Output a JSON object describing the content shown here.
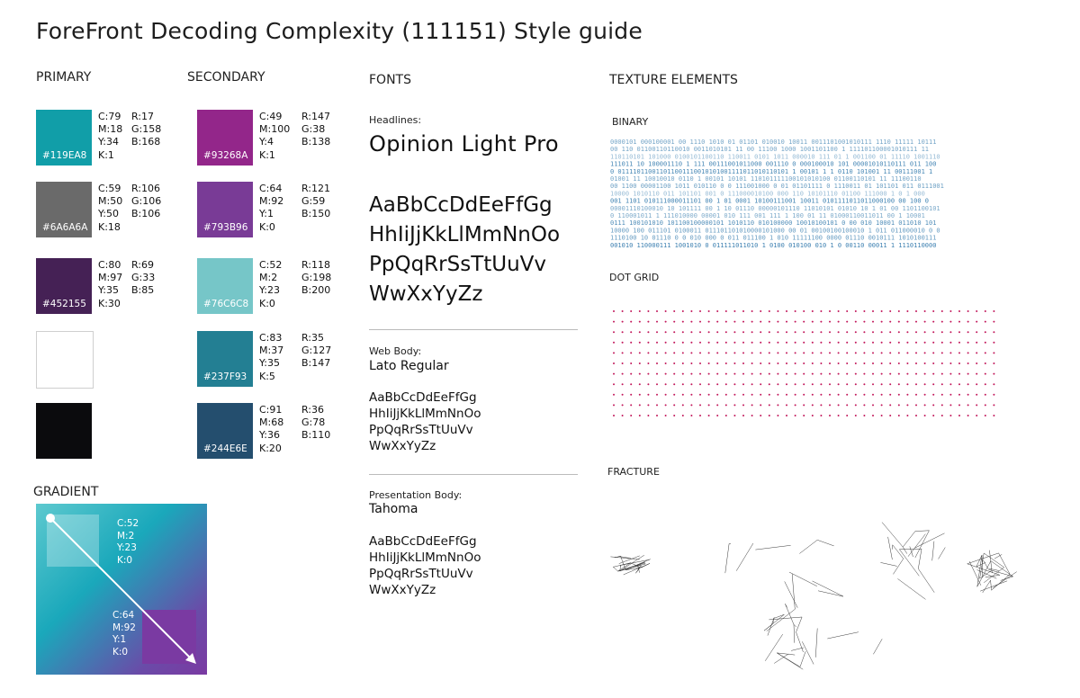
{
  "title": "ForeFront  Decoding Complexity (111151) Style guide",
  "sections": {
    "primary": "PRIMARY",
    "secondary": "SECONDARY",
    "fonts": "FONTS",
    "texture": "TEXTURE ELEMENTS",
    "gradient": "GRADIENT"
  },
  "primary_swatches": [
    {
      "hex": "#119EA8",
      "color": "#119ea8",
      "c": "C:79",
      "m": "M:18",
      "y": "Y:34",
      "k": "K:1",
      "r": "R:17",
      "g": "G:158",
      "b": "B:168"
    },
    {
      "hex": "#6A6A6A",
      "color": "#6a6a6a",
      "c": "C:59",
      "m": "M:50",
      "y": "Y:50",
      "k": "K:18",
      "r": "R:106",
      "g": "G:106",
      "b": "B:106"
    },
    {
      "hex": "#452155",
      "color": "#452155",
      "c": "C:80",
      "m": "M:97",
      "y": "Y:35",
      "k": "K:30",
      "r": "R:69",
      "g": "G:33",
      "b": "B:85"
    },
    {
      "color": "#ffffff"
    },
    {
      "color": "#0b0b0d"
    }
  ],
  "secondary_swatches": [
    {
      "hex": "#93268A",
      "color": "#93268a",
      "c": "C:49",
      "m": "M:100",
      "y": "Y:4",
      "k": "K:1",
      "r": "R:147",
      "g": "G:38",
      "b": "B:138"
    },
    {
      "hex": "#793B96",
      "color": "#793b96",
      "c": "C:64",
      "m": "M:92",
      "y": "Y:1",
      "k": "K:0",
      "r": "R:121",
      "g": "G:59",
      "b": "B:150"
    },
    {
      "hex": "#76C6C8",
      "color": "#76c6c8",
      "c": "C:52",
      "m": "M:2",
      "y": "Y:23",
      "k": "K:0",
      "r": "R:118",
      "g": "G:198",
      "b": "B:200"
    },
    {
      "hex": "#237F93",
      "color": "#237f93",
      "c": "C:83",
      "m": "M:37",
      "y": "Y:35",
      "k": "K:5",
      "r": "R:35",
      "g": "G:127",
      "b": "B:147"
    },
    {
      "hex": "#244E6E",
      "color": "#244e6e",
      "c": "C:91",
      "m": "M:68",
      "y": "Y:36",
      "k": "K:20",
      "r": "R:36",
      "g": "G:78",
      "b": "B:110"
    }
  ],
  "fonts": {
    "headlines_label": "Headlines:",
    "headlines_name": "Opinion Light Pro",
    "headlines_sample": [
      "AaBbCcDdEeFfGg",
      "HhIiJjKkLlMmNnOo",
      "PpQqRrSsTtUuVv",
      "WwXxYyZz"
    ],
    "web_label": "Web Body:",
    "web_name": "Lato Regular",
    "web_sample": [
      "AaBbCcDdEeFfGg",
      "HhIiJjKkLlMmNnOo",
      "PpQqRrSsTtUuVv",
      "WwXxYyZz"
    ],
    "pres_label": "Presentation Body:",
    "pres_name": "Tahoma",
    "pres_sample": [
      "AaBbCcDdEeFfGg",
      "HhIiJjKkLlMmNnOo",
      "PpQqRrSsTtUuVv",
      "WwXxYyZz"
    ]
  },
  "texture": {
    "binary": "BINARY",
    "dot_grid": "DOT GRID",
    "fracture": "FRACTURE"
  },
  "gradient": {
    "start": {
      "c": "C:52",
      "m": "M:2",
      "y": "Y:23",
      "k": "K:0",
      "color": "#76c6c8"
    },
    "end": {
      "c": "C:64",
      "m": "M:92",
      "y": "Y:1",
      "k": "K:0",
      "color": "#793b96"
    }
  },
  "colors": {
    "binary": "#3a7fb0",
    "dot": "#c2185b"
  }
}
